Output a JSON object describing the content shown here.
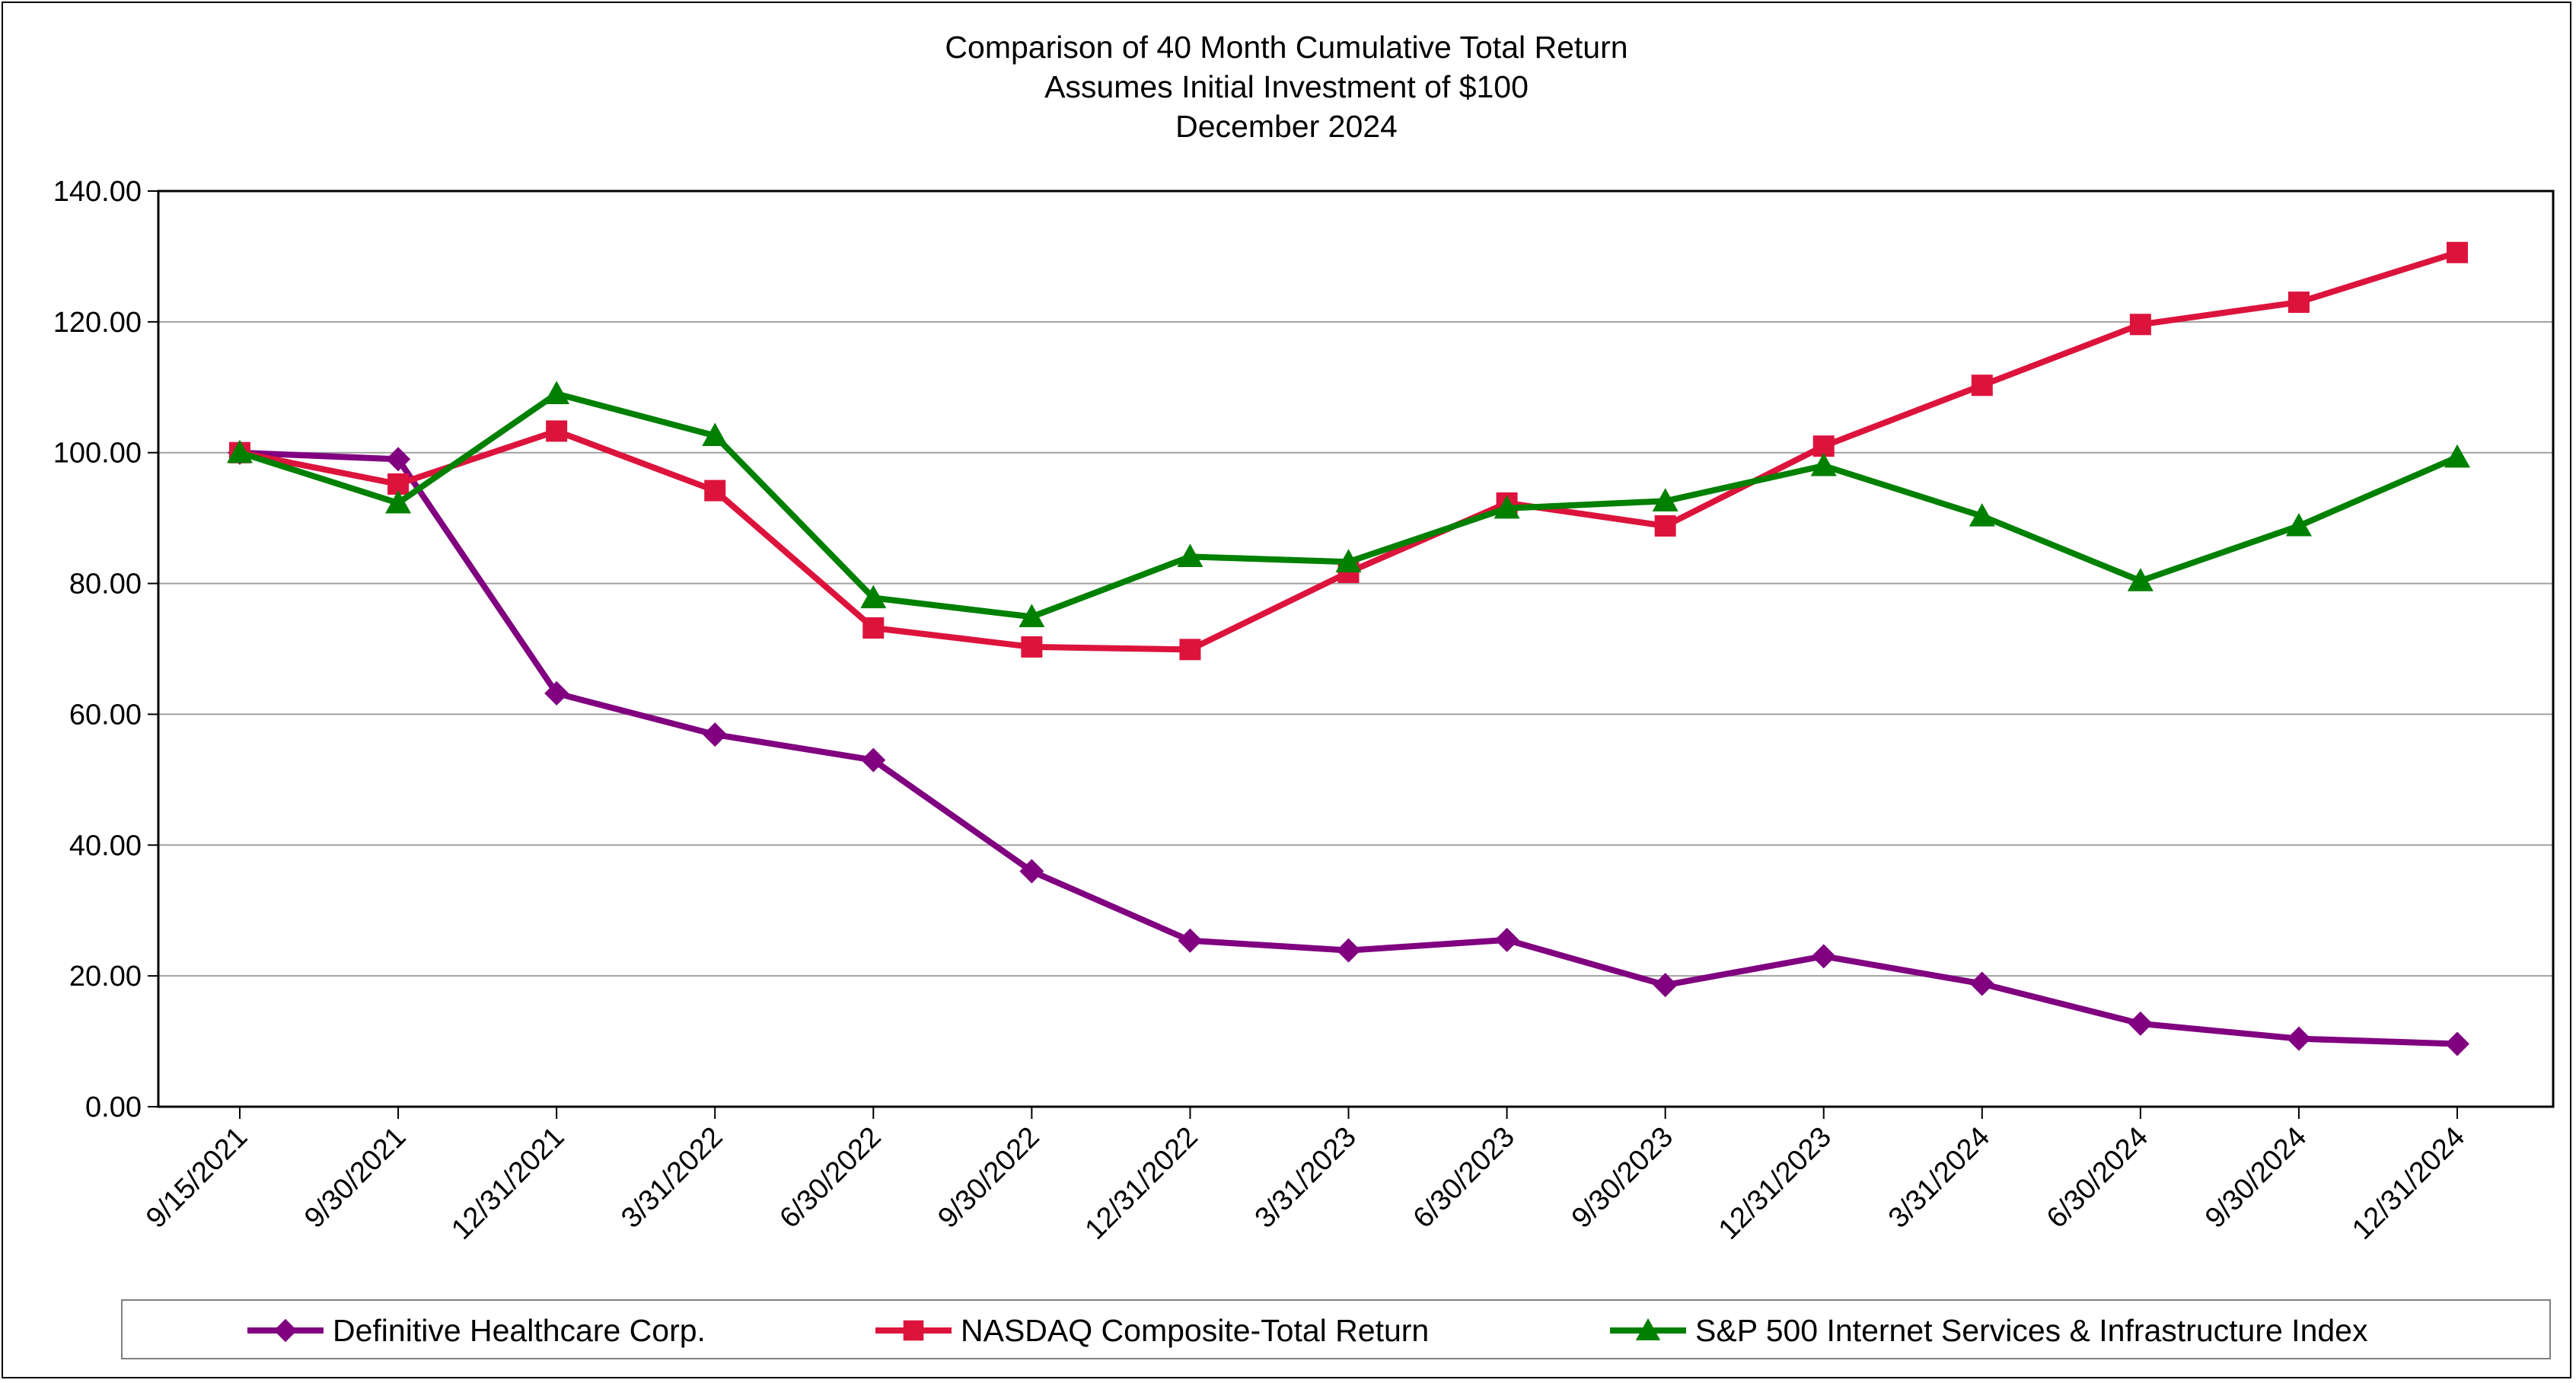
{
  "chart_data": {
    "type": "line",
    "title": [
      "Comparison of 40 Month Cumulative Total Return",
      "Assumes Initial Investment of $100",
      "December 2024"
    ],
    "xlabel": "",
    "ylabel": "",
    "categories": [
      "9/15/2021",
      "9/30/2021",
      "12/31/2021",
      "3/31/2022",
      "6/30/2022",
      "9/30/2022",
      "12/31/2022",
      "3/31/2023",
      "6/30/2023",
      "9/30/2023",
      "12/31/2023",
      "3/31/2024",
      "6/30/2024",
      "9/30/2024",
      "12/31/2024"
    ],
    "ylim": [
      0,
      140
    ],
    "yticks": [
      "0.00",
      "20.00",
      "40.00",
      "60.00",
      "80.00",
      "100.00",
      "120.00",
      "140.00"
    ],
    "grid": true,
    "legend_position": "bottom",
    "series": [
      {
        "name": "Definitive Healthcare Corp.",
        "color": "#800080",
        "marker": "diamond",
        "values": [
          100.0,
          99.0,
          63.2,
          56.9,
          53.0,
          36.0,
          25.4,
          23.9,
          25.5,
          18.6,
          23.0,
          18.8,
          12.7,
          10.4,
          9.6
        ]
      },
      {
        "name": "NASDAQ Composite-Total Return",
        "color": "#dc143c",
        "marker": "square",
        "values": [
          100.0,
          95.2,
          103.3,
          94.2,
          73.2,
          70.3,
          69.9,
          81.7,
          92.3,
          88.8,
          101.0,
          110.3,
          119.6,
          123.0,
          130.6
        ]
      },
      {
        "name": "S&P 500 Internet Services & Infrastructure Index",
        "color": "#008000",
        "marker": "triangle",
        "values": [
          100.0,
          92.3,
          109.0,
          102.6,
          77.8,
          74.9,
          84.1,
          83.3,
          91.5,
          92.6,
          98.0,
          90.3,
          80.4,
          88.8,
          99.3
        ]
      }
    ]
  }
}
